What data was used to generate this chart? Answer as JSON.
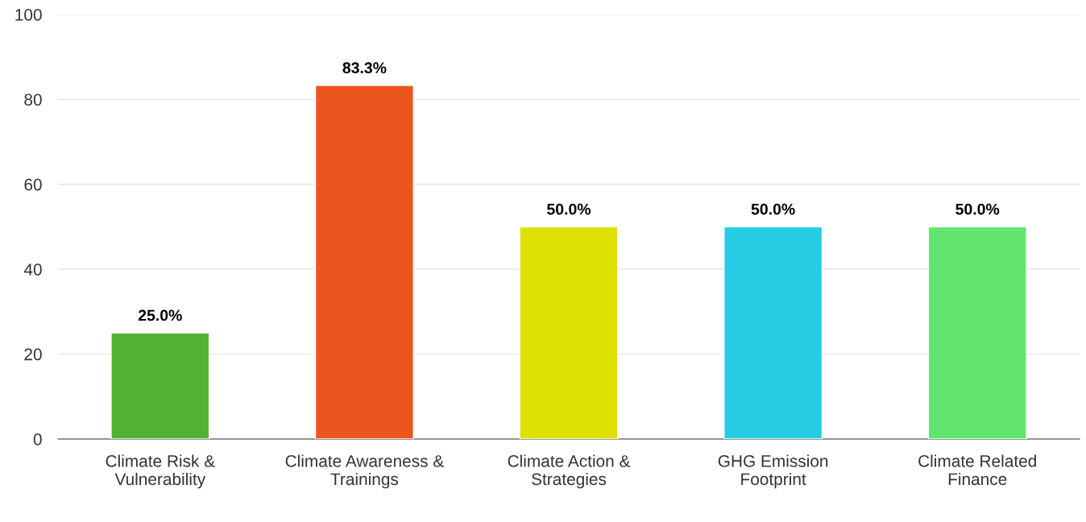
{
  "chart_data": {
    "type": "bar",
    "categories": [
      "Climate Risk & Vulnerability",
      "Climate Awareness & Trainings",
      "Climate Action & Strategies",
      "GHG Emission Footprint",
      "Climate Related Finance"
    ],
    "values": [
      25,
      83.3,
      50,
      50,
      50
    ],
    "value_labels": [
      "25.0%",
      "83.3%",
      "50.0%",
      "50.0%",
      "50.0%"
    ],
    "colors": [
      "#52b234",
      "#eb561f",
      "#dde000",
      "#26cce3",
      "#63e46e"
    ],
    "ylim": [
      0,
      100
    ],
    "yticks": [
      0,
      20,
      40,
      60,
      80,
      100
    ],
    "grid": "y",
    "legend": false
  }
}
